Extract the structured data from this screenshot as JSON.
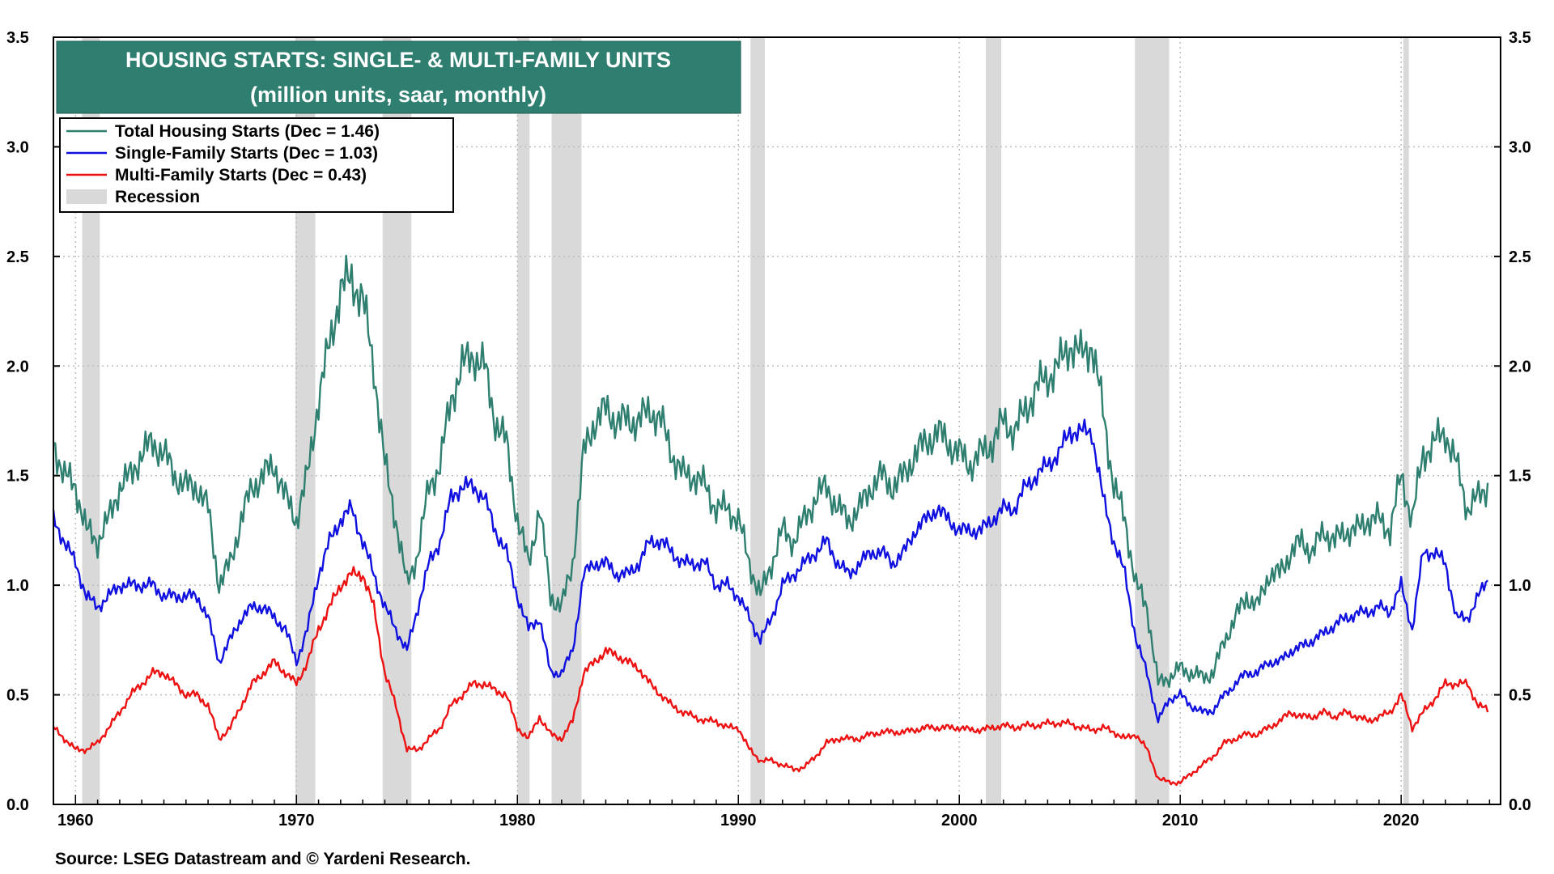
{
  "chart_data": {
    "type": "line",
    "title": "HOUSING STARTS: SINGLE- & MULTI-FAMILY UNITS",
    "subtitle": "(million units, saar, monthly)",
    "source": "Source: LSEG Datastream and © Yardeni Research.",
    "xlim": [
      1959,
      2024.5
    ],
    "ylim": [
      0,
      3.5
    ],
    "x_ticks": [
      1960,
      1970,
      1980,
      1990,
      2000,
      2010,
      2020
    ],
    "x_tick_labels": [
      "1960",
      "1970",
      "1980",
      "1990",
      "2000",
      "2010",
      "2020"
    ],
    "y_ticks": [
      0,
      0.5,
      1.0,
      1.5,
      2.0,
      2.5,
      3.0,
      3.5
    ],
    "y_tick_labels": [
      "0.0",
      "0.5",
      "1.0",
      "1.5",
      "2.0",
      "2.5",
      "3.0",
      "3.5"
    ],
    "grid": true,
    "recessions": [
      [
        1960.3,
        1961.1
      ],
      [
        1969.95,
        1970.85
      ],
      [
        1973.9,
        1975.2
      ],
      [
        1980.0,
        1980.55
      ],
      [
        1981.55,
        1982.9
      ],
      [
        1990.55,
        1991.2
      ],
      [
        2001.2,
        2001.9
      ],
      [
        2007.95,
        2009.5
      ],
      [
        2020.1,
        2020.35
      ]
    ],
    "legend": [
      {
        "label": "Total Housing Starts (Dec = 1.46)",
        "color": "#2e7f70",
        "kind": "line"
      },
      {
        "label": "Single-Family Starts (Dec = 1.03)",
        "color": "#1010e0",
        "kind": "line"
      },
      {
        "label": "Multi-Family Starts (Dec = 0.43)",
        "color": "#ee1111",
        "kind": "line"
      },
      {
        "label": "Recession",
        "color": "#d9d9d9",
        "kind": "box"
      }
    ],
    "series": [
      {
        "name": "Total Housing Starts",
        "color": "#2e7f70",
        "x": [
          1959,
          1959.5,
          1960,
          1960.5,
          1961,
          1961.5,
          1962,
          1962.5,
          1963,
          1963.5,
          1964,
          1964.5,
          1965,
          1965.5,
          1966,
          1966.5,
          1967,
          1967.5,
          1968,
          1968.5,
          1969,
          1969.5,
          1970,
          1970.5,
          1971,
          1971.5,
          1972,
          1972.5,
          1973,
          1973.5,
          1974,
          1974.5,
          1975,
          1975.5,
          1976,
          1976.5,
          1977,
          1977.5,
          1978,
          1978.5,
          1979,
          1979.5,
          1980,
          1980.5,
          1981,
          1981.5,
          1982,
          1982.5,
          1983,
          1983.5,
          1984,
          1984.5,
          1985,
          1985.5,
          1986,
          1986.5,
          1987,
          1987.5,
          1988,
          1988.5,
          1989,
          1989.5,
          1990,
          1990.5,
          1991,
          1991.5,
          1992,
          1992.5,
          1993,
          1993.5,
          1994,
          1994.5,
          1995,
          1995.5,
          1996,
          1996.5,
          1997,
          1997.5,
          1998,
          1998.5,
          1999,
          1999.5,
          2000,
          2000.5,
          2001,
          2001.5,
          2002,
          2002.5,
          2003,
          2003.5,
          2004,
          2004.5,
          2005,
          2005.5,
          2006,
          2006.5,
          2007,
          2007.5,
          2008,
          2008.5,
          2009,
          2009.5,
          2010,
          2010.5,
          2011,
          2011.5,
          2012,
          2012.5,
          2013,
          2013.5,
          2014,
          2014.5,
          2015,
          2015.5,
          2016,
          2016.5,
          2017,
          2017.5,
          2018,
          2018.5,
          2019,
          2019.5,
          2020,
          2020.5,
          2021,
          2021.5,
          2022,
          2022.5,
          2023,
          2023.5,
          2023.95
        ],
        "y": [
          1.65,
          1.5,
          1.45,
          1.25,
          1.2,
          1.3,
          1.45,
          1.5,
          1.6,
          1.65,
          1.6,
          1.5,
          1.45,
          1.45,
          1.35,
          1.0,
          1.1,
          1.3,
          1.45,
          1.5,
          1.55,
          1.4,
          1.3,
          1.5,
          1.85,
          2.1,
          2.35,
          2.4,
          2.3,
          2.0,
          1.55,
          1.3,
          1.0,
          1.15,
          1.45,
          1.55,
          1.85,
          2.0,
          2.05,
          2.0,
          1.75,
          1.65,
          1.3,
          1.1,
          1.35,
          0.95,
          0.9,
          1.1,
          1.6,
          1.75,
          1.8,
          1.75,
          1.75,
          1.75,
          1.8,
          1.75,
          1.6,
          1.5,
          1.5,
          1.45,
          1.35,
          1.35,
          1.3,
          1.1,
          0.95,
          1.1,
          1.25,
          1.2,
          1.3,
          1.4,
          1.45,
          1.35,
          1.3,
          1.35,
          1.45,
          1.5,
          1.45,
          1.5,
          1.6,
          1.65,
          1.7,
          1.65,
          1.6,
          1.55,
          1.6,
          1.65,
          1.75,
          1.7,
          1.8,
          1.9,
          1.95,
          2.0,
          2.1,
          2.05,
          2.1,
          1.8,
          1.45,
          1.3,
          1.0,
          0.9,
          0.55,
          0.58,
          0.62,
          0.6,
          0.58,
          0.6,
          0.75,
          0.85,
          0.95,
          0.9,
          1.05,
          1.05,
          1.15,
          1.2,
          1.15,
          1.25,
          1.2,
          1.25,
          1.25,
          1.3,
          1.3,
          1.25,
          1.5,
          1.3,
          1.6,
          1.65,
          1.7,
          1.55,
          1.35,
          1.4,
          1.46
        ]
      },
      {
        "name": "Single-Family Starts",
        "color": "#1010e0",
        "x": [
          1959,
          1959.5,
          1960,
          1960.5,
          1961,
          1961.5,
          1962,
          1962.5,
          1963,
          1963.5,
          1964,
          1964.5,
          1965,
          1965.5,
          1966,
          1966.5,
          1967,
          1967.5,
          1968,
          1968.5,
          1969,
          1969.5,
          1970,
          1970.5,
          1971,
          1971.5,
          1972,
          1972.5,
          1973,
          1973.5,
          1974,
          1974.5,
          1975,
          1975.5,
          1976,
          1976.5,
          1977,
          1977.5,
          1978,
          1978.5,
          1979,
          1979.5,
          1980,
          1980.5,
          1981,
          1981.5,
          1982,
          1982.5,
          1983,
          1983.5,
          1984,
          1984.5,
          1985,
          1985.5,
          1986,
          1986.5,
          1987,
          1987.5,
          1988,
          1988.5,
          1989,
          1989.5,
          1990,
          1990.5,
          1991,
          1991.5,
          1992,
          1992.5,
          1993,
          1993.5,
          1994,
          1994.5,
          1995,
          1995.5,
          1996,
          1996.5,
          1997,
          1997.5,
          1998,
          1998.5,
          1999,
          1999.5,
          2000,
          2000.5,
          2001,
          2001.5,
          2002,
          2002.5,
          2003,
          2003.5,
          2004,
          2004.5,
          2005,
          2005.5,
          2006,
          2006.5,
          2007,
          2007.5,
          2008,
          2008.5,
          2009,
          2009.5,
          2010,
          2010.5,
          2011,
          2011.5,
          2012,
          2012.5,
          2013,
          2013.5,
          2014,
          2014.5,
          2015,
          2015.5,
          2016,
          2016.5,
          2017,
          2017.5,
          2018,
          2018.5,
          2019,
          2019.5,
          2020,
          2020.5,
          2021,
          2021.5,
          2022,
          2022.5,
          2023,
          2023.5,
          2023.95
        ],
        "y": [
          1.3,
          1.2,
          1.1,
          0.95,
          0.9,
          0.95,
          1.0,
          1.0,
          1.0,
          1.0,
          0.95,
          0.95,
          0.95,
          0.95,
          0.85,
          0.65,
          0.75,
          0.85,
          0.9,
          0.9,
          0.85,
          0.8,
          0.65,
          0.8,
          1.05,
          1.2,
          1.3,
          1.35,
          1.2,
          1.05,
          0.9,
          0.8,
          0.7,
          0.9,
          1.1,
          1.2,
          1.4,
          1.45,
          1.45,
          1.4,
          1.25,
          1.15,
          0.95,
          0.8,
          0.85,
          0.6,
          0.6,
          0.7,
          1.05,
          1.1,
          1.1,
          1.05,
          1.05,
          1.1,
          1.2,
          1.2,
          1.15,
          1.1,
          1.1,
          1.1,
          1.0,
          1.0,
          0.95,
          0.85,
          0.75,
          0.85,
          1.0,
          1.05,
          1.1,
          1.15,
          1.2,
          1.1,
          1.05,
          1.1,
          1.15,
          1.15,
          1.1,
          1.15,
          1.25,
          1.3,
          1.35,
          1.3,
          1.25,
          1.25,
          1.25,
          1.3,
          1.35,
          1.35,
          1.45,
          1.5,
          1.55,
          1.6,
          1.7,
          1.7,
          1.7,
          1.4,
          1.2,
          1.05,
          0.75,
          0.6,
          0.38,
          0.48,
          0.5,
          0.45,
          0.42,
          0.43,
          0.5,
          0.55,
          0.6,
          0.6,
          0.65,
          0.65,
          0.7,
          0.72,
          0.75,
          0.78,
          0.82,
          0.85,
          0.87,
          0.88,
          0.9,
          0.88,
          1.0,
          0.8,
          1.15,
          1.15,
          1.1,
          0.85,
          0.85,
          0.95,
          1.03
        ]
      },
      {
        "name": "Multi-Family Starts",
        "color": "#ee1111",
        "x": [
          1959,
          1959.5,
          1960,
          1960.5,
          1961,
          1961.5,
          1962,
          1962.5,
          1963,
          1963.5,
          1964,
          1964.5,
          1965,
          1965.5,
          1966,
          1966.5,
          1967,
          1967.5,
          1968,
          1968.5,
          1969,
          1969.5,
          1970,
          1970.5,
          1971,
          1971.5,
          1972,
          1972.5,
          1973,
          1973.5,
          1974,
          1974.5,
          1975,
          1975.5,
          1976,
          1976.5,
          1977,
          1977.5,
          1978,
          1978.5,
          1979,
          1979.5,
          1980,
          1980.5,
          1981,
          1981.5,
          1982,
          1982.5,
          1983,
          1983.5,
          1984,
          1984.5,
          1985,
          1985.5,
          1986,
          1986.5,
          1987,
          1987.5,
          1988,
          1988.5,
          1989,
          1989.5,
          1990,
          1990.5,
          1991,
          1991.5,
          1992,
          1992.5,
          1993,
          1993.5,
          1994,
          1994.5,
          1995,
          1995.5,
          1996,
          1996.5,
          1997,
          1997.5,
          1998,
          1998.5,
          1999,
          1999.5,
          2000,
          2000.5,
          2001,
          2001.5,
          2002,
          2002.5,
          2003,
          2003.5,
          2004,
          2004.5,
          2005,
          2005.5,
          2006,
          2006.5,
          2007,
          2007.5,
          2008,
          2008.5,
          2009,
          2009.5,
          2010,
          2010.5,
          2011,
          2011.5,
          2012,
          2012.5,
          2013,
          2013.5,
          2014,
          2014.5,
          2015,
          2015.5,
          2016,
          2016.5,
          2017,
          2017.5,
          2018,
          2018.5,
          2019,
          2019.5,
          2020,
          2020.5,
          2021,
          2021.5,
          2022,
          2022.5,
          2023,
          2023.5,
          2023.95
        ],
        "y": [
          0.35,
          0.3,
          0.25,
          0.25,
          0.28,
          0.35,
          0.42,
          0.5,
          0.55,
          0.6,
          0.6,
          0.55,
          0.5,
          0.5,
          0.45,
          0.3,
          0.35,
          0.45,
          0.55,
          0.6,
          0.65,
          0.6,
          0.55,
          0.65,
          0.8,
          0.9,
          1.0,
          1.05,
          1.05,
          0.9,
          0.6,
          0.45,
          0.25,
          0.25,
          0.3,
          0.35,
          0.45,
          0.5,
          0.55,
          0.55,
          0.52,
          0.5,
          0.35,
          0.3,
          0.4,
          0.32,
          0.3,
          0.38,
          0.6,
          0.65,
          0.7,
          0.68,
          0.65,
          0.62,
          0.55,
          0.5,
          0.45,
          0.42,
          0.4,
          0.38,
          0.38,
          0.35,
          0.35,
          0.25,
          0.2,
          0.2,
          0.18,
          0.16,
          0.17,
          0.22,
          0.28,
          0.3,
          0.3,
          0.3,
          0.32,
          0.33,
          0.33,
          0.33,
          0.34,
          0.35,
          0.35,
          0.35,
          0.35,
          0.34,
          0.34,
          0.35,
          0.36,
          0.35,
          0.36,
          0.36,
          0.37,
          0.37,
          0.37,
          0.35,
          0.34,
          0.35,
          0.33,
          0.3,
          0.32,
          0.25,
          0.12,
          0.1,
          0.1,
          0.14,
          0.18,
          0.22,
          0.28,
          0.3,
          0.32,
          0.32,
          0.35,
          0.38,
          0.42,
          0.4,
          0.4,
          0.42,
          0.4,
          0.42,
          0.4,
          0.38,
          0.4,
          0.42,
          0.5,
          0.35,
          0.42,
          0.48,
          0.55,
          0.55,
          0.55,
          0.45,
          0.43
        ]
      }
    ]
  }
}
